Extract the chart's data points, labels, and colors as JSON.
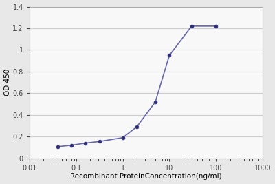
{
  "x": [
    0.04,
    0.08,
    0.16,
    0.32,
    1.0,
    2.0,
    5.0,
    10.0,
    30.0,
    100.0
  ],
  "y": [
    0.107,
    0.12,
    0.14,
    0.155,
    0.19,
    0.29,
    0.52,
    0.95,
    1.22,
    1.22
  ],
  "xlim": [
    0.01,
    1000
  ],
  "ylim": [
    0,
    1.4
  ],
  "yticks": [
    0,
    0.2,
    0.4,
    0.6,
    0.8,
    1.0,
    1.2,
    1.4
  ],
  "xticks": [
    0.01,
    0.1,
    1,
    10,
    100,
    1000
  ],
  "xtick_labels": [
    "0.01",
    "0.1",
    "1",
    "10",
    "100",
    "1000"
  ],
  "xlabel": "Recombinant ProteinConcentration(ng/ml)",
  "ylabel": "OD 450",
  "line_color": "#6666aa",
  "marker_color": "#2e2e7a",
  "bg_color": "#e8e8e8",
  "plot_bg": "#f8f8f8",
  "grid_color": "#cccccc",
  "font_size": 7,
  "xlabel_font_size": 7.5,
  "ylabel_font_size": 7.5,
  "figsize": [
    4.0,
    2.67
  ],
  "dpi": 100
}
